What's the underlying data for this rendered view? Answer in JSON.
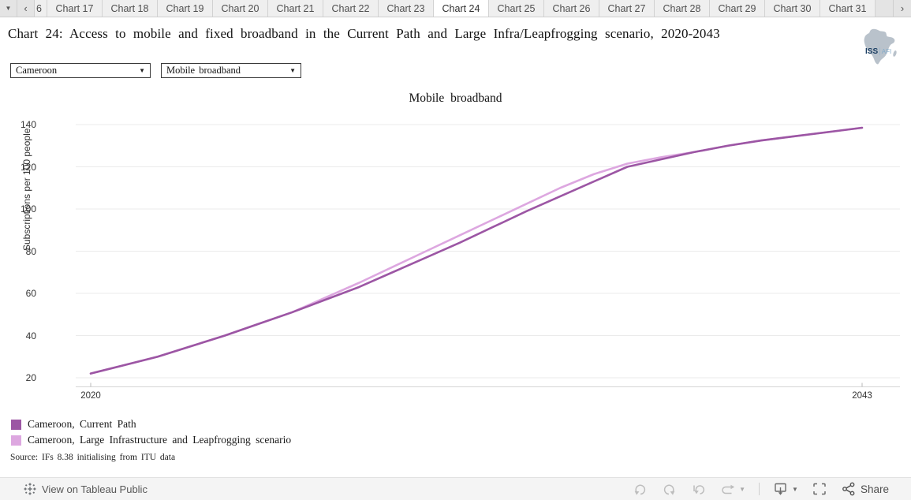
{
  "tab_bar": {
    "dropdown_icon": "▼",
    "scroll_left_icon": "‹",
    "scroll_right_icon": "›",
    "partial_tab": "6",
    "active_tab": "Chart 24",
    "tabs": [
      "Chart 17",
      "Chart 18",
      "Chart 19",
      "Chart 20",
      "Chart 21",
      "Chart 22",
      "Chart 23",
      "Chart 24",
      "Chart 25",
      "Chart 26",
      "Chart 27",
      "Chart 28",
      "Chart 29",
      "Chart 30",
      "Chart 31"
    ]
  },
  "header": {
    "title": "Chart 24: Access to mobile and fixed broadband in the Current Path and Large Infra/Leapfrogging scenario, 2020-2043",
    "logo_primary": "ISS",
    "logo_separator": "|",
    "logo_secondary": "AFI"
  },
  "filters": {
    "country": "Cameroon",
    "indicator": "Mobile broadband"
  },
  "chart_data": {
    "type": "line",
    "title": "Mobile broadband",
    "xlabel": "",
    "ylabel": "Subscriptions per 100 people",
    "x_ticks": [
      2020,
      2043
    ],
    "y_ticks": [
      20,
      40,
      60,
      80,
      100,
      120,
      140
    ],
    "ylim": [
      20,
      140
    ],
    "xlim": [
      2020,
      2043
    ],
    "grid": true,
    "legend_position": "bottom-left",
    "grid_color": "#ebebeb",
    "axis_line_color": "#d6d6d6",
    "x": [
      2020,
      2021,
      2022,
      2023,
      2024,
      2025,
      2026,
      2027,
      2028,
      2029,
      2030,
      2031,
      2032,
      2033,
      2034,
      2035,
      2036,
      2037,
      2038,
      2039,
      2040,
      2041,
      2042,
      2043
    ],
    "series": [
      {
        "name": "Cameroon, Current Path",
        "color": "#9c56a4",
        "values": [
          22,
          26,
          30,
          35,
          40,
          45.5,
          51,
          57,
          63,
          70,
          77,
          84,
          91.5,
          99,
          106,
          113,
          120,
          123.5,
          127,
          130,
          132.5,
          134.5,
          136.5,
          138.5
        ]
      },
      {
        "name": "Cameroon, Large Infrastructure and Leapfrogging scenario",
        "color": "#dda7e0",
        "values": [
          22,
          26,
          30,
          35,
          40,
          45.5,
          51,
          58,
          65,
          72.5,
          80,
          87.5,
          95,
          102.5,
          110,
          116.5,
          121.5,
          124.5,
          127,
          130,
          132.5,
          134.5,
          136.5,
          138.5
        ]
      }
    ],
    "source": "Source: IFs 8.38 initialising from ITU data"
  },
  "toolbar": {
    "view_label": "View on Tableau Public",
    "share_label": "Share"
  }
}
